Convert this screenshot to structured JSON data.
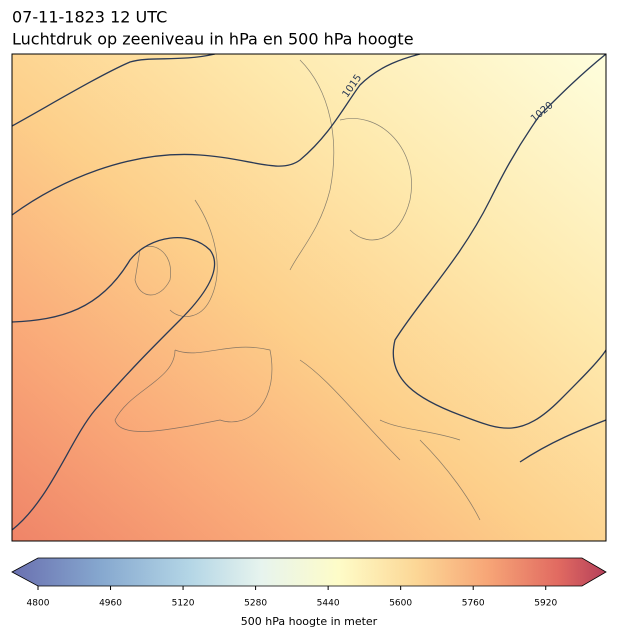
{
  "header": {
    "title": "07-11-1823 12 UTC",
    "subtitle": "Luchtdruk op zeeniveau in hPa en 500 hPa hoogte"
  },
  "map": {
    "isobar_labels": [
      1015,
      1020
    ]
  },
  "colorbar": {
    "label": "500 hPa hoogte in meter",
    "range": [
      4800,
      6000
    ],
    "ticks": [
      4800,
      4960,
      5120,
      5280,
      5440,
      5600,
      5760,
      5920
    ]
  }
}
